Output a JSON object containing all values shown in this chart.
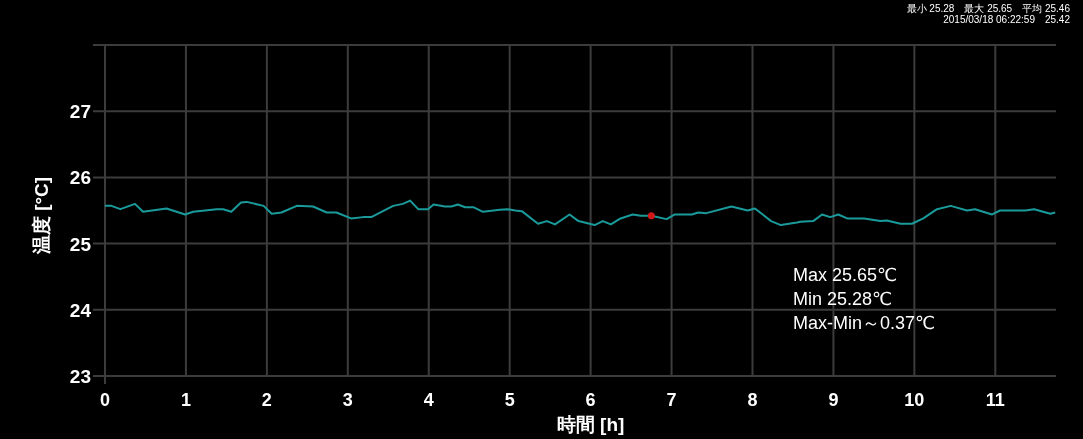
{
  "chart_data": {
    "type": "line",
    "xlabel": "時間 [h]",
    "ylabel": "温度 [°C]",
    "xlim": [
      0,
      11.75
    ],
    "xticks": [
      0,
      1,
      2,
      3,
      4,
      5,
      6,
      7,
      8,
      9,
      10,
      11
    ],
    "ylim": [
      23,
      28
    ],
    "yticks": [
      23,
      24,
      25,
      26,
      27,
      {
        "value": 28,
        "label": null
      }
    ],
    "grid": true,
    "annotations": [
      "最小 25.28　最大 25.65　平均 25.46",
      "2015/03/18 06:22:59　25.42",
      "Max 25.65℃",
      "Min  25.28℃",
      "Max-Min～0.37℃"
    ],
    "series": [
      {
        "color": "#1a9a9a",
        "x": [
          0,
          0.08,
          0.19,
          0.37,
          0.47,
          0.76,
          0.99,
          1.09,
          1.38,
          1.46,
          1.56,
          1.68,
          1.75,
          1.96,
          2.06,
          2.18,
          2.37,
          2.57,
          2.74,
          2.86,
          3.04,
          3.19,
          3.29,
          3.56,
          3.68,
          3.77,
          3.87,
          3.99,
          4.06,
          4.2,
          4.28,
          4.36,
          4.45,
          4.55,
          4.67,
          4.88,
          4.97,
          5.07,
          5.15,
          5.35,
          5.46,
          5.56,
          5.74,
          5.85,
          6.05,
          6.15,
          6.25,
          6.37,
          6.52,
          6.62,
          6.75,
          6.94,
          7.04,
          7.25,
          7.33,
          7.43,
          7.74,
          7.94,
          8.03,
          8.23,
          8.35,
          8.55,
          8.59,
          8.75,
          8.86,
          8.96,
          9.06,
          9.17,
          9.38,
          9.58,
          9.66,
          9.83,
          9.97,
          10.11,
          10.28,
          10.45,
          10.65,
          10.75,
          10.96,
          11.06,
          11.37,
          11.48,
          11.68,
          11.74
        ],
        "values": [
          25.57,
          25.57,
          25.52,
          25.6,
          25.48,
          25.53,
          25.44,
          25.48,
          25.52,
          25.52,
          25.48,
          25.62,
          25.63,
          25.57,
          25.45,
          25.47,
          25.57,
          25.56,
          25.47,
          25.47,
          25.38,
          25.4,
          25.4,
          25.57,
          25.6,
          25.65,
          25.52,
          25.52,
          25.59,
          25.56,
          25.56,
          25.59,
          25.55,
          25.55,
          25.48,
          25.51,
          25.52,
          25.5,
          25.49,
          25.3,
          25.34,
          25.29,
          25.44,
          25.34,
          25.28,
          25.34,
          25.29,
          25.38,
          25.44,
          25.42,
          25.42,
          25.37,
          25.44,
          25.44,
          25.47,
          25.46,
          25.56,
          25.5,
          25.53,
          25.34,
          25.28,
          25.32,
          25.33,
          25.34,
          25.44,
          25.4,
          25.44,
          25.38,
          25.38,
          25.34,
          25.35,
          25.3,
          25.3,
          25.38,
          25.52,
          25.57,
          25.5,
          25.52,
          25.44,
          25.5,
          25.5,
          25.52,
          25.45,
          25.47
        ]
      },
      {
        "type": "scatter",
        "color": "#d01818",
        "x": [
          6.75
        ],
        "values": [
          25.42
        ]
      }
    ]
  }
}
